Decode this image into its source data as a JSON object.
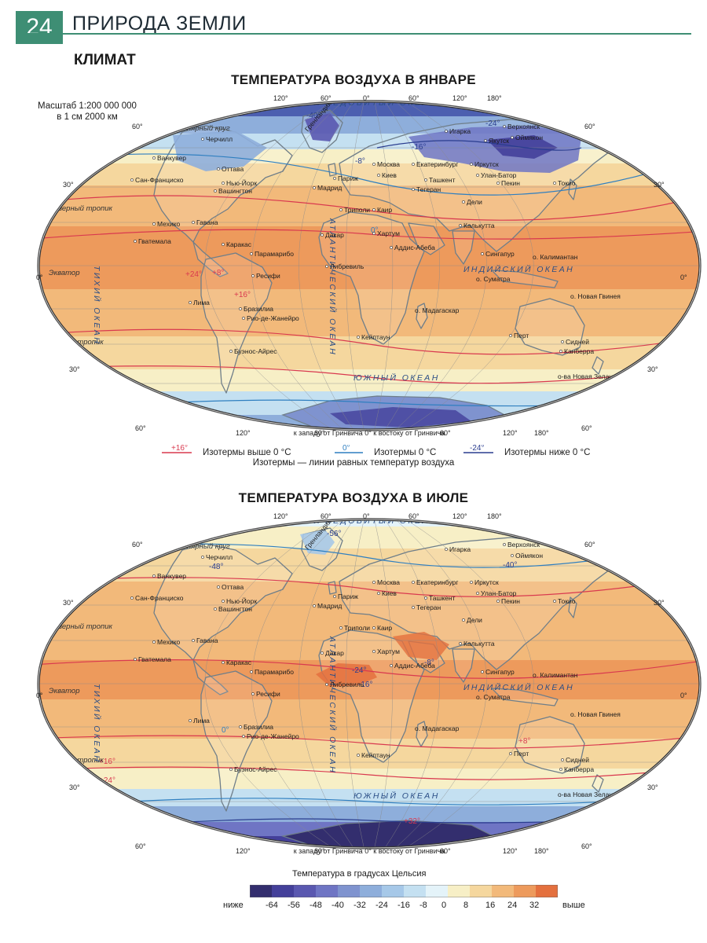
{
  "header": {
    "page_number": "24",
    "section": "ПРИРОДА ЗЕМЛИ",
    "subsection": "КЛИМАТ"
  },
  "colors": {
    "accent": "#3e8e74",
    "ocean_frame": "#ffffff",
    "land_outline": "#7d8b95"
  },
  "scale_note": "Масштаб 1:200 000 000\nв 1 см 2000 км",
  "maps": [
    {
      "id": "january",
      "title": "ТЕМПЕРАТУРА ВОЗДУХА В ЯНВАРЕ",
      "bottom_caption": "к западу от Гринвича  0°  к востоку от Гринвича",
      "longitude_labels": [
        "120°",
        "60°",
        "0°",
        "60°",
        "120°",
        "180°"
      ],
      "latitude_labels": [
        "60°",
        "30°",
        "0°",
        "30°",
        "60°"
      ],
      "line_labels": [
        "Северный тропик",
        "Экватор",
        "Южный тропик",
        "Южный полярный круг",
        "Северный полярный круг"
      ],
      "ocean_labels": [
        "СЕВЕРНЫЙ ЛЕДОВИТЫЙ ОКЕАН",
        "ТИХИЙ ОКЕАН",
        "АТЛАНТИЧЕСКИЙ ОКЕАН",
        "ИНДИЙСКИЙ ОКЕАН",
        "ЮЖНЫЙ ОКЕАН"
      ],
      "places": [
        "Ванкувер",
        "Сан-Франциско",
        "Нью-Йорк",
        "Вашингтон",
        "Оттава",
        "Черчилл",
        "Мехико",
        "Гавана",
        "Гватемала",
        "Каракас",
        "Парамарибо",
        "Лима",
        "Бразилиа",
        "Рио-де-Жанейро",
        "Ресифи",
        "Буэнос-Айрес",
        "Мадрид",
        "Париж",
        "Москва",
        "Киев",
        "Екатеринбург",
        "Иркутск",
        "Якутск",
        "Верхоянск",
        "Оймякон",
        "Анадырь",
        "Игарка",
        "Улан-Батор",
        "Пекин",
        "Токио",
        "Ташкент",
        "Тегеран",
        "Дели",
        "Калькутта",
        "Триполи",
        "Каир",
        "Дакар",
        "Хартум",
        "Аддис-Абеба",
        "Либревиль",
        "Кейптаун",
        "Сингапур",
        "о. Калимантан",
        "о. Суматра",
        "о. Новая Гвинея",
        "о. Мадагаскар",
        "Перт",
        "Сидней",
        "Канберра",
        "о-ва Новая Зеландия",
        "Гренландия"
      ],
      "isotherm_labels": [
        "-32°",
        "-40°",
        "-24°",
        "-16°",
        "-8°",
        "0°",
        "+8°",
        "+16°",
        "+24°"
      ]
    },
    {
      "id": "july",
      "title": "ТЕМПЕРАТУРА ВОЗДУХА В ИЮЛЕ",
      "bottom_caption": "к западу от Гринвича  0°  к востоку от Гринвича",
      "longitude_labels": [
        "120°",
        "60°",
        "0°",
        "60°",
        "120°",
        "180°"
      ],
      "latitude_labels": [
        "60°",
        "30°",
        "0°",
        "30°",
        "60°"
      ],
      "line_labels": [
        "Северный тропик",
        "Экватор",
        "Южный тропик",
        "Южный полярный круг",
        "Северный полярный круг"
      ],
      "ocean_labels": [
        "СЕВЕРНЫЙ ЛЕДОВИТЫЙ ОКЕАН",
        "ТИХИЙ ОКЕАН",
        "АТЛАНТИЧЕСКИЙ ОКЕАН",
        "ИНДИЙСКИЙ ОКЕАН",
        "ЮЖНЫЙ ОКЕАН"
      ],
      "places": [
        "Ванкувер",
        "Сан-Франциско",
        "Нью-Йорк",
        "Вашингтон",
        "Оттава",
        "Черчилл",
        "Мехико",
        "Гавана",
        "Гватемала",
        "Каракас",
        "Парамарибо",
        "Лима",
        "Бразилиа",
        "Рио-де-Жанейро",
        "Ресифи",
        "Буэнос-Айрес",
        "Мадрид",
        "Париж",
        "Москва",
        "Киев",
        "Екатеринбург",
        "Иркутск",
        "Верхоянск",
        "Оймякон",
        "Анадырь",
        "Игарка",
        "Улан-Батор",
        "Пекин",
        "Токио",
        "Ташкент",
        "Тегеран",
        "Дели",
        "Калькутта",
        "Триполи",
        "Каир",
        "Дакар",
        "Хартум",
        "Аддис-Абеба",
        "Либревиль",
        "Кейптаун",
        "Сингапур",
        "о. Калимантан",
        "о. Суматра",
        "о. Новая Гвинея",
        "о. Мадагаскар",
        "Перт",
        "Сидней",
        "Канберра",
        "о-ва Новая Зеландия",
        "Гренландия"
      ],
      "isotherm_labels": [
        "-56°",
        "-48°",
        "-40°",
        "-24°",
        "-16°",
        "-8°",
        "0°",
        "+8°",
        "+16°",
        "+24°",
        "+32°"
      ]
    }
  ],
  "isotherm_legend": {
    "above_zero_sample": "+16°",
    "above_zero_text": "Изотермы выше 0 °С",
    "zero_sample": "0°",
    "zero_text": "Изотермы 0 °С",
    "below_zero_sample": "-24°",
    "below_zero_text": "Изотермы ниже 0 °С",
    "note": "Изотермы — линии равных температур воздуха"
  },
  "temperature_scale": {
    "title": "Температура в градусах Цельсия",
    "low_word": "ниже",
    "high_word": "выше",
    "ticks": [
      "-64",
      "-56",
      "-48",
      "-40",
      "-32",
      "-24",
      "-16",
      "-8",
      "0",
      "8",
      "16",
      "24",
      "32"
    ],
    "bands": [
      "#332e6e",
      "#44409a",
      "#5a58b0",
      "#6f75c4",
      "#7f93cf",
      "#8eaedb",
      "#a6c8e8",
      "#c4e0f1",
      "#e4f3f9",
      "#f7efc6",
      "#f5d79e",
      "#f2b97a",
      "#ed9a5c",
      "#e4703e"
    ]
  }
}
